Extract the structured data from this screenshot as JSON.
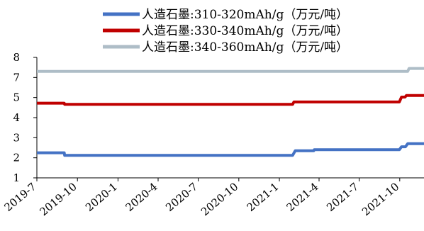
{
  "chart_data": {
    "type": "line",
    "title": "",
    "xlabel": "",
    "ylabel": "",
    "ylim": [
      1,
      8
    ],
    "y_ticks": [
      1,
      2,
      3,
      4,
      5,
      7,
      8
    ],
    "x_tick_labels": [
      "2019-7",
      "2019-10",
      "2020-1",
      "2020-4",
      "2020-7",
      "2020-10",
      "2021-1",
      "2021-4",
      "2021-7",
      "2021-10"
    ],
    "x_range": [
      "2019-07-01",
      "2021-11-25"
    ],
    "grid": false,
    "legend_position": "top-right",
    "series": [
      {
        "name": "人造石墨:310-320mAh/g（万元/吨）",
        "color": "#4472C4",
        "points": [
          [
            "2019-07-01",
            2.25
          ],
          [
            "2019-09-01",
            2.25
          ],
          [
            "2019-09-02",
            2.12
          ],
          [
            "2021-01-31",
            2.12
          ],
          [
            "2021-02-06",
            2.35
          ],
          [
            "2021-03-20",
            2.35
          ],
          [
            "2021-03-21",
            2.4
          ],
          [
            "2021-09-30",
            2.4
          ],
          [
            "2021-10-05",
            2.55
          ],
          [
            "2021-10-14",
            2.55
          ],
          [
            "2021-10-19",
            2.7
          ],
          [
            "2021-11-25",
            2.7
          ]
        ]
      },
      {
        "name": "人造石墨:330-340mAh/g（万元/吨）",
        "color": "#C00000",
        "points": [
          [
            "2019-07-01",
            4.72
          ],
          [
            "2019-09-01",
            4.72
          ],
          [
            "2019-09-02",
            4.66
          ],
          [
            "2021-01-31",
            4.66
          ],
          [
            "2021-02-03",
            4.78
          ],
          [
            "2021-09-30",
            4.78
          ],
          [
            "2021-10-05",
            5.05
          ],
          [
            "2021-10-13",
            5.05
          ],
          [
            "2021-10-16",
            5.2
          ],
          [
            "2021-11-25",
            5.2
          ]
        ]
      },
      {
        "name": "人造石墨:340-360mAh/g（万元/吨）",
        "color": "#AEBDC7",
        "points": [
          [
            "2019-07-01",
            7.3
          ],
          [
            "2021-10-19",
            7.3
          ],
          [
            "2021-10-22",
            7.45
          ],
          [
            "2021-11-25",
            7.45
          ]
        ]
      }
    ]
  }
}
